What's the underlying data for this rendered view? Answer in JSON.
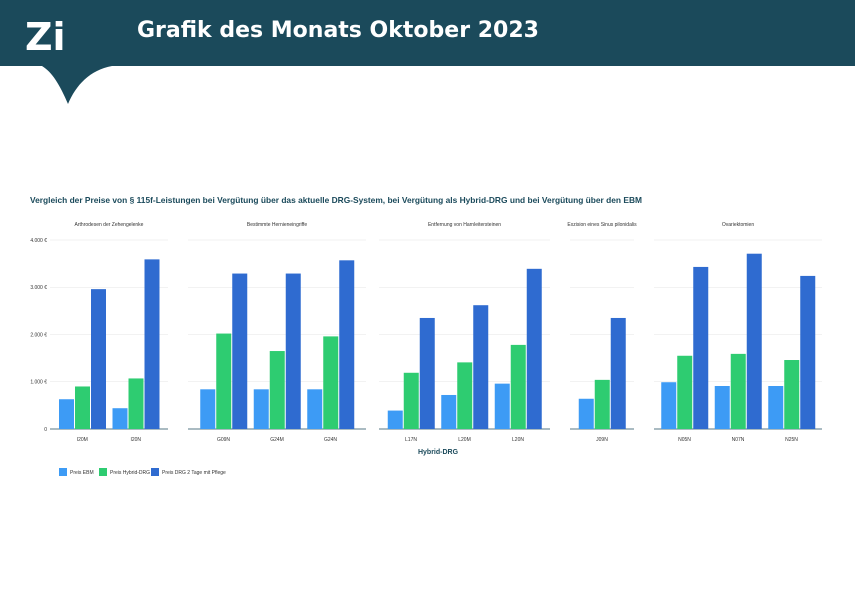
{
  "header": {
    "logo_text": "Zi",
    "title": "Grafik des Monats Oktober 2023"
  },
  "colors": {
    "header_bg": "#1b4a5b",
    "ebm": "#3d9bf5",
    "hybrid": "#2ecc71",
    "drg": "#2f6bd0"
  },
  "chart_data": {
    "type": "bar",
    "title": "Vergleich der Preise von § 115f-Leistungen bei Vergütung über das aktuelle DRG-System, bei Vergütung als Hybrid-DRG und bei Vergütung über den EBM",
    "xlabel": "Hybrid-DRG",
    "ylabel": "",
    "ylim": [
      0,
      4000
    ],
    "yticks": [
      "0",
      "1.000 €",
      "2.000 €",
      "3.000 €",
      "4.000 €"
    ],
    "grid": true,
    "legend_position": "bottom-left",
    "series_names": [
      "Preis EBM",
      "Preis Hybrid-DRG",
      "Preis DRG  2 Tage mit Pflege"
    ],
    "panels": [
      {
        "title": "Arthrodesen der Zehengelenke",
        "categories": [
          "I20M",
          "I20N"
        ],
        "series": [
          {
            "name": "Preis EBM",
            "values": [
              630,
              440
            ]
          },
          {
            "name": "Preis Hybrid-DRG",
            "values": [
              900,
              1070
            ]
          },
          {
            "name": "Preis DRG  2 Tage mit Pflege",
            "values": [
              2960,
              3590
            ]
          }
        ]
      },
      {
        "title": "Bestimmte Hernieneingriffe",
        "categories": [
          "G09N",
          "G24M",
          "G24N"
        ],
        "series": [
          {
            "name": "Preis EBM",
            "values": [
              840,
              840,
              840
            ]
          },
          {
            "name": "Preis Hybrid-DRG",
            "values": [
              2020,
              1650,
              1960
            ]
          },
          {
            "name": "Preis DRG  2 Tage mit Pflege",
            "values": [
              3290,
              3290,
              3570
            ]
          }
        ]
      },
      {
        "title": "Entfernung von Harnleitersteinen",
        "categories": [
          "L17N",
          "L20M",
          "L20N"
        ],
        "series": [
          {
            "name": "Preis EBM",
            "values": [
              390,
              720,
              960
            ]
          },
          {
            "name": "Preis Hybrid-DRG",
            "values": [
              1190,
              1410,
              1780
            ]
          },
          {
            "name": "Preis DRG  2 Tage mit Pflege",
            "values": [
              2350,
              2620,
              3390
            ]
          }
        ]
      },
      {
        "title": "Exzision eines Sinus pilonidalis",
        "categories": [
          "J09N"
        ],
        "series": [
          {
            "name": "Preis EBM",
            "values": [
              640
            ]
          },
          {
            "name": "Preis Hybrid-DRG",
            "values": [
              1040
            ]
          },
          {
            "name": "Preis DRG  2 Tage mit Pflege",
            "values": [
              2350
            ]
          }
        ]
      },
      {
        "title": "Ovariektomien",
        "categories": [
          "N05N",
          "N07N",
          "N25N"
        ],
        "series": [
          {
            "name": "Preis EBM",
            "values": [
              990,
              910,
              910
            ]
          },
          {
            "name": "Preis Hybrid-DRG",
            "values": [
              1550,
              1590,
              1460
            ]
          },
          {
            "name": "Preis DRG  2 Tage mit Pflege",
            "values": [
              3430,
              3710,
              3240
            ]
          }
        ]
      }
    ]
  }
}
